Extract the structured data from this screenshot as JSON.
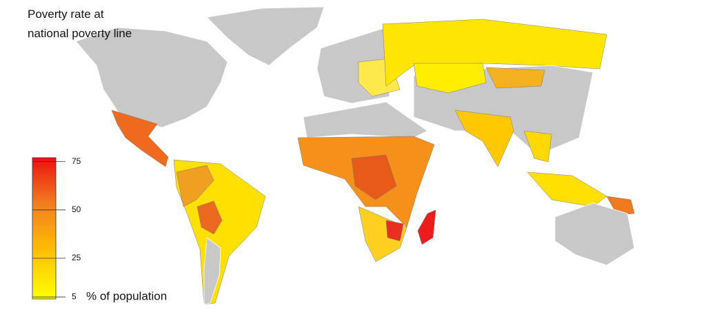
{
  "title": [
    "Poverty rate at",
    "national poverty line"
  ],
  "legend": {
    "label": "% of population",
    "limits": [
      4,
      77
    ],
    "ticks": [
      5,
      25,
      50,
      75
    ],
    "colors": [
      "#ffff00",
      "#ffc000",
      "#f08020",
      "#ee1010"
    ]
  }
}
